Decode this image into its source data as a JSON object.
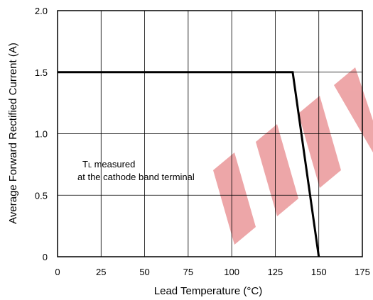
{
  "chart_data": {
    "type": "line",
    "title": "",
    "xlabel": "Lead Temperature (°C)",
    "ylabel": "Average Forward Rectified Current (A)",
    "xlim": [
      0,
      175
    ],
    "ylim": [
      0,
      2.0
    ],
    "grid": true,
    "x_ticks": [
      0,
      25,
      50,
      75,
      100,
      125,
      150,
      175
    ],
    "y_ticks": [
      0,
      0.5,
      1.0,
      1.5,
      2.0
    ],
    "x_tick_labels": [
      "0",
      "25",
      "50",
      "75",
      "100",
      "125",
      "150",
      "175"
    ],
    "y_tick_labels": [
      "0",
      "0.5",
      "1.0",
      "1.5",
      "2.0"
    ],
    "series": [
      {
        "x": [
          0,
          135,
          150
        ],
        "y": [
          1.5,
          1.5,
          0
        ]
      }
    ],
    "annotation": {
      "line1_main": "T",
      "line1_sub": "L",
      "line1_rest": " measured",
      "line2": "at the cathode band terminal"
    },
    "watermark_color": "#e8898c",
    "line_color": "#000000"
  }
}
